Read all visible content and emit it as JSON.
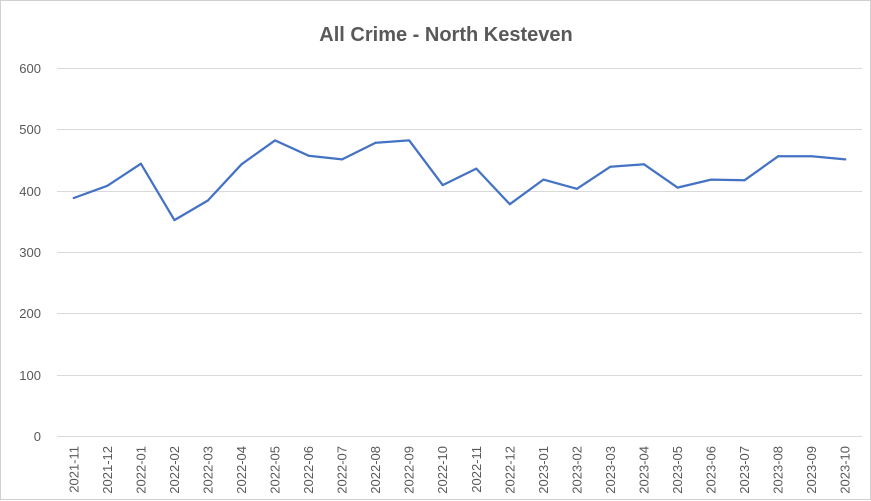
{
  "chart_data": {
    "type": "line",
    "title": "All Crime - North Kesteven",
    "xlabel": "",
    "ylabel": "",
    "ylim": [
      0,
      600
    ],
    "yticks": [
      0,
      100,
      200,
      300,
      400,
      500,
      600
    ],
    "grid": "horizontal",
    "legend": "none",
    "categories": [
      "2021-11",
      "2021-12",
      "2022-01",
      "2022-02",
      "2022-03",
      "2022-04",
      "2022-05",
      "2022-06",
      "2022-07",
      "2022-08",
      "2022-09",
      "2022-10",
      "2022-11",
      "2022-12",
      "2023-01",
      "2023-02",
      "2023-03",
      "2023-04",
      "2023-05",
      "2023-06",
      "2023-07",
      "2023-08",
      "2023-09",
      "2023-10"
    ],
    "series": [
      {
        "color": "#4472C4",
        "values": [
          388,
          408,
          444,
          352,
          384,
          443,
          482,
          457,
          451,
          478,
          482,
          409,
          436,
          378,
          418,
          403,
          439,
          443,
          405,
          418,
          417,
          456,
          456,
          451
        ]
      }
    ]
  }
}
